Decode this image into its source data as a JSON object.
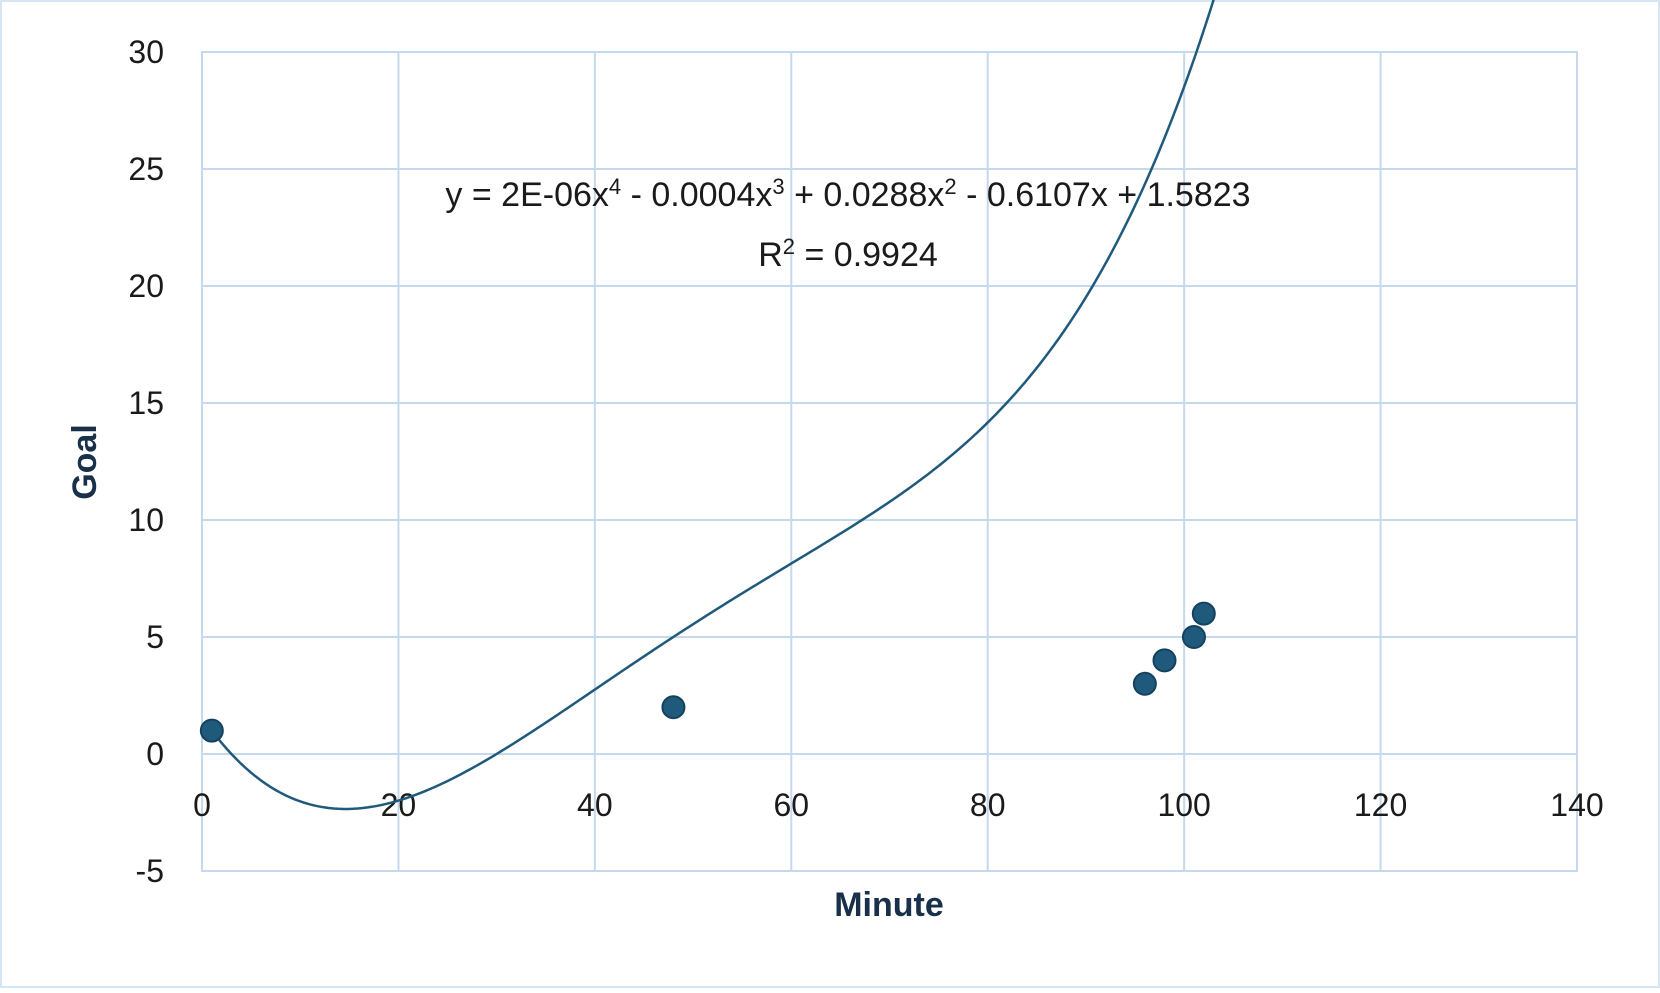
{
  "chart_data": {
    "type": "scatter",
    "xlabel": "Minute",
    "ylabel": "Goal",
    "xlim": [
      0,
      140
    ],
    "ylim": [
      -5,
      30
    ],
    "x_ticks": [
      "0",
      "20",
      "40",
      "60",
      "80",
      "100",
      "120",
      "140"
    ],
    "y_ticks": [
      "30",
      "25",
      "20",
      "15",
      "10",
      "5",
      "0",
      "-5"
    ],
    "grid": true,
    "series": [
      {
        "points": [
          {
            "x": 1,
            "y": 1
          },
          {
            "x": 48,
            "y": 2
          },
          {
            "x": 96,
            "y": 3
          },
          {
            "x": 98,
            "y": 4
          },
          {
            "x": 101,
            "y": 5
          },
          {
            "x": 102,
            "y": 6
          }
        ],
        "color": "#1f5a7d"
      }
    ],
    "trendline": {
      "kind": "polynomial",
      "order": 4,
      "coefficients": [
        2e-06,
        -0.0004,
        0.0288,
        -0.6107,
        1.5823
      ],
      "x_range": [
        1,
        120
      ],
      "color": "#1f5a7d",
      "equation": {
        "prefix": "y = 2E-06x",
        "exp1": "4",
        "part2": " - 0.0004x",
        "exp2": "3",
        "part3": " + 0.0288x",
        "exp3": "2",
        "part4": " - 0.6107x + 1.5823"
      },
      "r_squared": {
        "prefix": "R",
        "exp": "2",
        "value_text": " = 0.9924"
      }
    },
    "colors": {
      "grid": "#c5d9ec",
      "border": "#c5d9ec",
      "frame": "#d6e6f2"
    }
  }
}
